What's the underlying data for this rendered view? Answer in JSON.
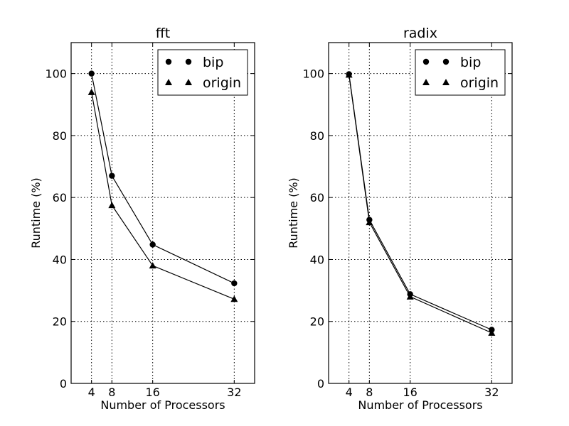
{
  "chart_data": [
    {
      "type": "line",
      "title": "fft",
      "xlabel": "Number of Processors",
      "ylabel": "Runtime (%)",
      "x": [
        4,
        8,
        16,
        32
      ],
      "xticks": [
        "4",
        "8",
        "16",
        "32"
      ],
      "yticks": [
        "0",
        "20",
        "40",
        "60",
        "80",
        "100"
      ],
      "xlim": [
        0,
        36
      ],
      "ylim": [
        0,
        110
      ],
      "grid": true,
      "legend_position": "top-right",
      "series": [
        {
          "name": "bip",
          "marker": "circle",
          "values": [
            100,
            67,
            44.8,
            32.3
          ]
        },
        {
          "name": "origin",
          "marker": "triangle",
          "values": [
            94,
            57.5,
            38,
            27.2
          ]
        }
      ]
    },
    {
      "type": "line",
      "title": "radix",
      "xlabel": "Number of Processors",
      "ylabel": "Runtime (%)",
      "x": [
        4,
        8,
        16,
        32
      ],
      "xticks": [
        "4",
        "8",
        "16",
        "32"
      ],
      "yticks": [
        "0",
        "20",
        "40",
        "60",
        "80",
        "100"
      ],
      "xlim": [
        0,
        36
      ],
      "ylim": [
        0,
        110
      ],
      "grid": true,
      "legend_position": "top-right",
      "series": [
        {
          "name": "bip",
          "marker": "circle",
          "values": [
            99.8,
            52.8,
            28.8,
            17.3
          ]
        },
        {
          "name": "origin",
          "marker": "triangle",
          "values": [
            99.6,
            52,
            28,
            16.3
          ]
        }
      ]
    }
  ],
  "colors": {
    "ink": "#000000",
    "background": "#ffffff"
  }
}
